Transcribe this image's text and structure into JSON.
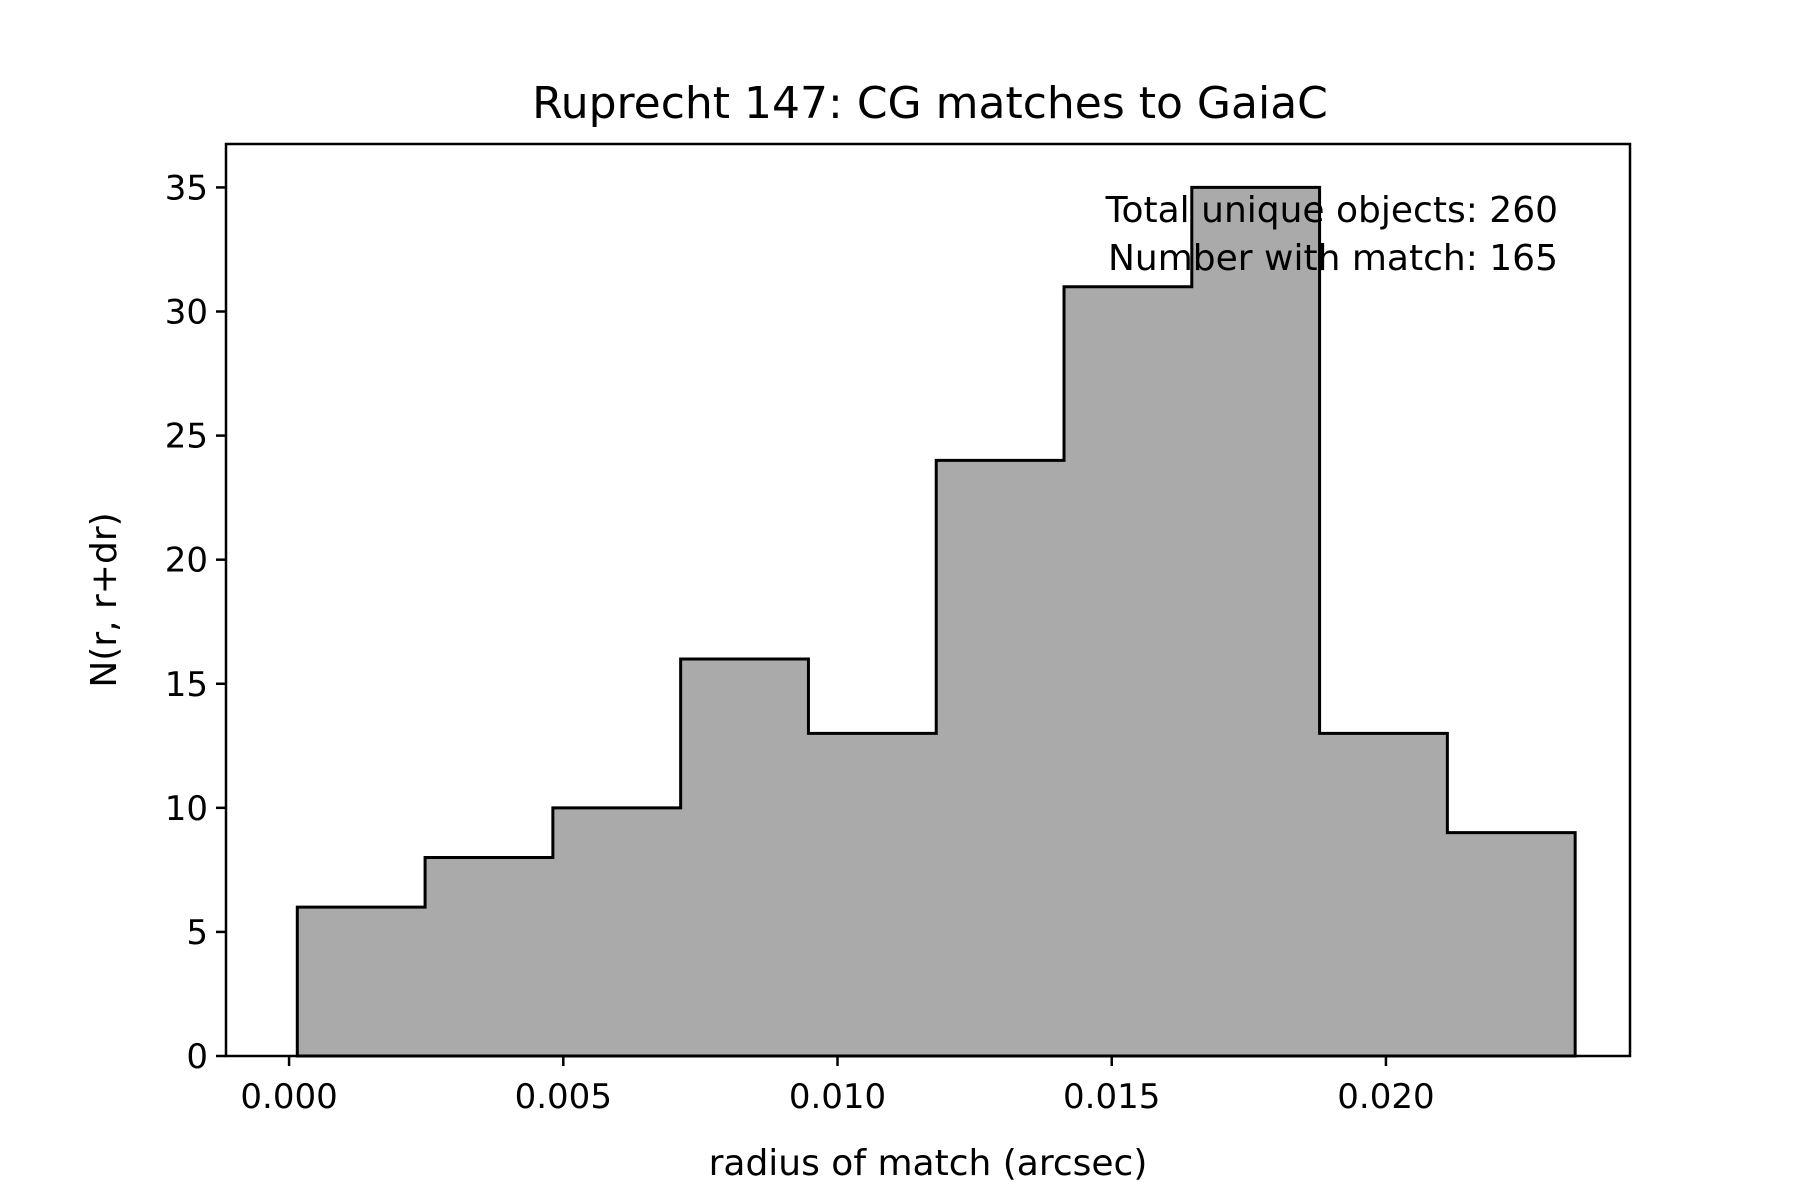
{
  "chart_data": {
    "type": "bar",
    "title": "Ruprecht 147: CG matches to GaiaC",
    "xlabel": "radius of match (arcsec)",
    "ylabel": "N(r, r+dr)",
    "xlim": [
      -0.00115,
      0.02445
    ],
    "ylim": [
      0,
      36.75
    ],
    "xticks": [
      0.0,
      0.005,
      0.01,
      0.015,
      0.02
    ],
    "xtick_labels": [
      "0.000",
      "0.005",
      "0.010",
      "0.015",
      "0.020"
    ],
    "yticks": [
      0,
      5,
      10,
      15,
      20,
      25,
      30,
      35
    ],
    "ytick_labels": [
      "0",
      "5",
      "10",
      "15",
      "20",
      "25",
      "30",
      "35"
    ],
    "bin_edges": [
      0.00015,
      0.00248,
      0.00481,
      0.00714,
      0.00947,
      0.0118,
      0.01413,
      0.01646,
      0.01879,
      0.02112,
      0.02345
    ],
    "values": [
      6,
      8,
      10,
      16,
      13,
      24,
      31,
      35,
      13,
      9
    ],
    "fill_color": "#aaaaaa",
    "edge_color": "#000000",
    "grid": false,
    "annotations": [
      "Total unique objects: 260",
      "Number with match: 165"
    ]
  }
}
